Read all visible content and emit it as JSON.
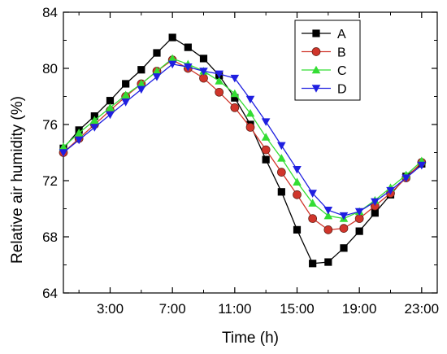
{
  "chart_data": {
    "type": "line",
    "title": "",
    "xlabel": "Time (h)",
    "ylabel": "Relative air humidity (%)",
    "xlim": [
      0,
      24
    ],
    "ylim": [
      64,
      84
    ],
    "x_ticks": [
      3,
      7,
      11,
      15,
      19,
      23
    ],
    "x_tick_labels": [
      "3:00",
      "7:00",
      "11:00",
      "15:00",
      "19:00",
      "23:00"
    ],
    "y_ticks": [
      64,
      68,
      72,
      76,
      80,
      84
    ],
    "y_tick_labels": [
      "64",
      "68",
      "72",
      "76",
      "80",
      "84"
    ],
    "grid": false,
    "legend_position": "top-right",
    "x": [
      0,
      1,
      2,
      3,
      4,
      5,
      6,
      7,
      8,
      9,
      10,
      11,
      12,
      13,
      14,
      15,
      16,
      17,
      18,
      19,
      20,
      21,
      22,
      23
    ],
    "series": [
      {
        "name": "A",
        "color": "#000000",
        "marker": "square",
        "values": [
          74.3,
          75.6,
          76.6,
          77.7,
          78.9,
          79.9,
          81.1,
          82.2,
          81.5,
          80.7,
          79.5,
          77.9,
          76.0,
          73.5,
          71.2,
          68.5,
          66.1,
          66.2,
          67.2,
          68.4,
          69.7,
          71.0,
          72.3,
          73.2
        ]
      },
      {
        "name": "B",
        "color": "#d0352b",
        "marker": "circle",
        "values": [
          74.0,
          75.0,
          76.0,
          77.0,
          78.0,
          78.9,
          79.8,
          80.6,
          80.0,
          79.3,
          78.3,
          77.2,
          75.8,
          74.2,
          72.6,
          71.0,
          69.3,
          68.5,
          68.6,
          69.3,
          70.2,
          71.1,
          72.2,
          73.3
        ]
      },
      {
        "name": "C",
        "color": "#33dd33",
        "marker": "triangle-up",
        "values": [
          74.4,
          75.4,
          76.3,
          77.2,
          78.1,
          78.9,
          79.8,
          80.7,
          80.3,
          79.8,
          79.1,
          78.2,
          76.8,
          75.1,
          73.6,
          71.9,
          70.4,
          69.5,
          69.3,
          69.8,
          70.6,
          71.5,
          72.4,
          73.4
        ]
      },
      {
        "name": "D",
        "color": "#1f1fe0",
        "marker": "triangle-down",
        "values": [
          74.0,
          74.9,
          75.8,
          76.7,
          77.6,
          78.5,
          79.4,
          80.3,
          80.1,
          79.8,
          79.6,
          79.3,
          77.8,
          76.2,
          74.5,
          72.8,
          71.1,
          69.9,
          69.5,
          69.8,
          70.5,
          71.3,
          72.2,
          73.1
        ]
      }
    ]
  }
}
